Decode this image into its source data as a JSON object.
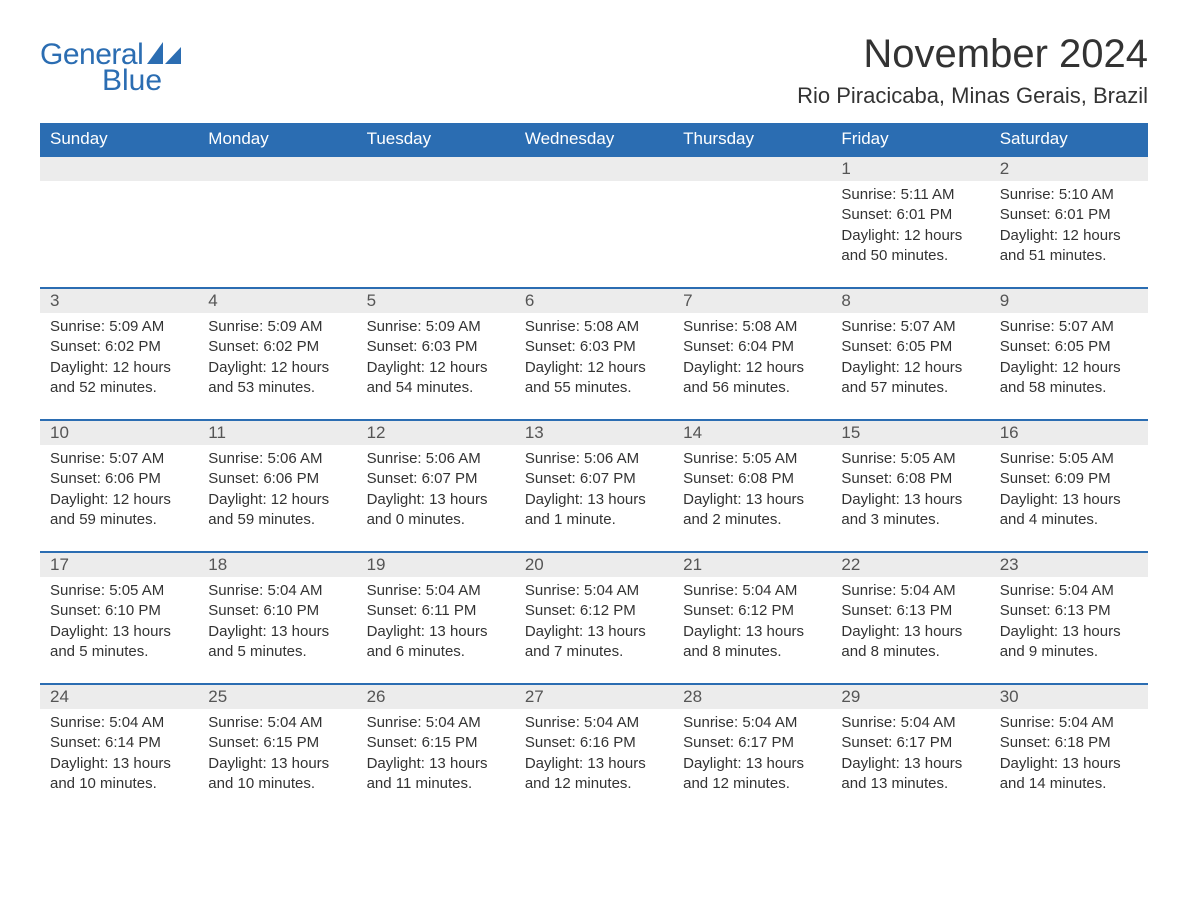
{
  "brand": {
    "part1": "General",
    "part2": "Blue",
    "color": "#2b6db2"
  },
  "title": "November 2024",
  "location": "Rio Piracicaba, Minas Gerais, Brazil",
  "header_bg": "#2b6db2",
  "header_fg": "#ffffff",
  "daynum_bg": "#ececec",
  "day_border": "#2b6db2",
  "text_color": "#333333",
  "fonts": {
    "title_pt": 40,
    "location_pt": 22,
    "header_pt": 17,
    "daynum_pt": 17,
    "body_pt": 15
  },
  "weekdays": [
    "Sunday",
    "Monday",
    "Tuesday",
    "Wednesday",
    "Thursday",
    "Friday",
    "Saturday"
  ],
  "first_weekday_index": 5,
  "days": [
    {
      "n": 1,
      "sunrise": "5:11 AM",
      "sunset": "6:01 PM",
      "dl": "12 hours and 50 minutes."
    },
    {
      "n": 2,
      "sunrise": "5:10 AM",
      "sunset": "6:01 PM",
      "dl": "12 hours and 51 minutes."
    },
    {
      "n": 3,
      "sunrise": "5:09 AM",
      "sunset": "6:02 PM",
      "dl": "12 hours and 52 minutes."
    },
    {
      "n": 4,
      "sunrise": "5:09 AM",
      "sunset": "6:02 PM",
      "dl": "12 hours and 53 minutes."
    },
    {
      "n": 5,
      "sunrise": "5:09 AM",
      "sunset": "6:03 PM",
      "dl": "12 hours and 54 minutes."
    },
    {
      "n": 6,
      "sunrise": "5:08 AM",
      "sunset": "6:03 PM",
      "dl": "12 hours and 55 minutes."
    },
    {
      "n": 7,
      "sunrise": "5:08 AM",
      "sunset": "6:04 PM",
      "dl": "12 hours and 56 minutes."
    },
    {
      "n": 8,
      "sunrise": "5:07 AM",
      "sunset": "6:05 PM",
      "dl": "12 hours and 57 minutes."
    },
    {
      "n": 9,
      "sunrise": "5:07 AM",
      "sunset": "6:05 PM",
      "dl": "12 hours and 58 minutes."
    },
    {
      "n": 10,
      "sunrise": "5:07 AM",
      "sunset": "6:06 PM",
      "dl": "12 hours and 59 minutes."
    },
    {
      "n": 11,
      "sunrise": "5:06 AM",
      "sunset": "6:06 PM",
      "dl": "12 hours and 59 minutes."
    },
    {
      "n": 12,
      "sunrise": "5:06 AM",
      "sunset": "6:07 PM",
      "dl": "13 hours and 0 minutes."
    },
    {
      "n": 13,
      "sunrise": "5:06 AM",
      "sunset": "6:07 PM",
      "dl": "13 hours and 1 minute."
    },
    {
      "n": 14,
      "sunrise": "5:05 AM",
      "sunset": "6:08 PM",
      "dl": "13 hours and 2 minutes."
    },
    {
      "n": 15,
      "sunrise": "5:05 AM",
      "sunset": "6:08 PM",
      "dl": "13 hours and 3 minutes."
    },
    {
      "n": 16,
      "sunrise": "5:05 AM",
      "sunset": "6:09 PM",
      "dl": "13 hours and 4 minutes."
    },
    {
      "n": 17,
      "sunrise": "5:05 AM",
      "sunset": "6:10 PM",
      "dl": "13 hours and 5 minutes."
    },
    {
      "n": 18,
      "sunrise": "5:04 AM",
      "sunset": "6:10 PM",
      "dl": "13 hours and 5 minutes."
    },
    {
      "n": 19,
      "sunrise": "5:04 AM",
      "sunset": "6:11 PM",
      "dl": "13 hours and 6 minutes."
    },
    {
      "n": 20,
      "sunrise": "5:04 AM",
      "sunset": "6:12 PM",
      "dl": "13 hours and 7 minutes."
    },
    {
      "n": 21,
      "sunrise": "5:04 AM",
      "sunset": "6:12 PM",
      "dl": "13 hours and 8 minutes."
    },
    {
      "n": 22,
      "sunrise": "5:04 AM",
      "sunset": "6:13 PM",
      "dl": "13 hours and 8 minutes."
    },
    {
      "n": 23,
      "sunrise": "5:04 AM",
      "sunset": "6:13 PM",
      "dl": "13 hours and 9 minutes."
    },
    {
      "n": 24,
      "sunrise": "5:04 AM",
      "sunset": "6:14 PM",
      "dl": "13 hours and 10 minutes."
    },
    {
      "n": 25,
      "sunrise": "5:04 AM",
      "sunset": "6:15 PM",
      "dl": "13 hours and 10 minutes."
    },
    {
      "n": 26,
      "sunrise": "5:04 AM",
      "sunset": "6:15 PM",
      "dl": "13 hours and 11 minutes."
    },
    {
      "n": 27,
      "sunrise": "5:04 AM",
      "sunset": "6:16 PM",
      "dl": "13 hours and 12 minutes."
    },
    {
      "n": 28,
      "sunrise": "5:04 AM",
      "sunset": "6:17 PM",
      "dl": "13 hours and 12 minutes."
    },
    {
      "n": 29,
      "sunrise": "5:04 AM",
      "sunset": "6:17 PM",
      "dl": "13 hours and 13 minutes."
    },
    {
      "n": 30,
      "sunrise": "5:04 AM",
      "sunset": "6:18 PM",
      "dl": "13 hours and 14 minutes."
    }
  ],
  "labels": {
    "sunrise": "Sunrise: ",
    "sunset": "Sunset: ",
    "daylight": "Daylight: "
  }
}
